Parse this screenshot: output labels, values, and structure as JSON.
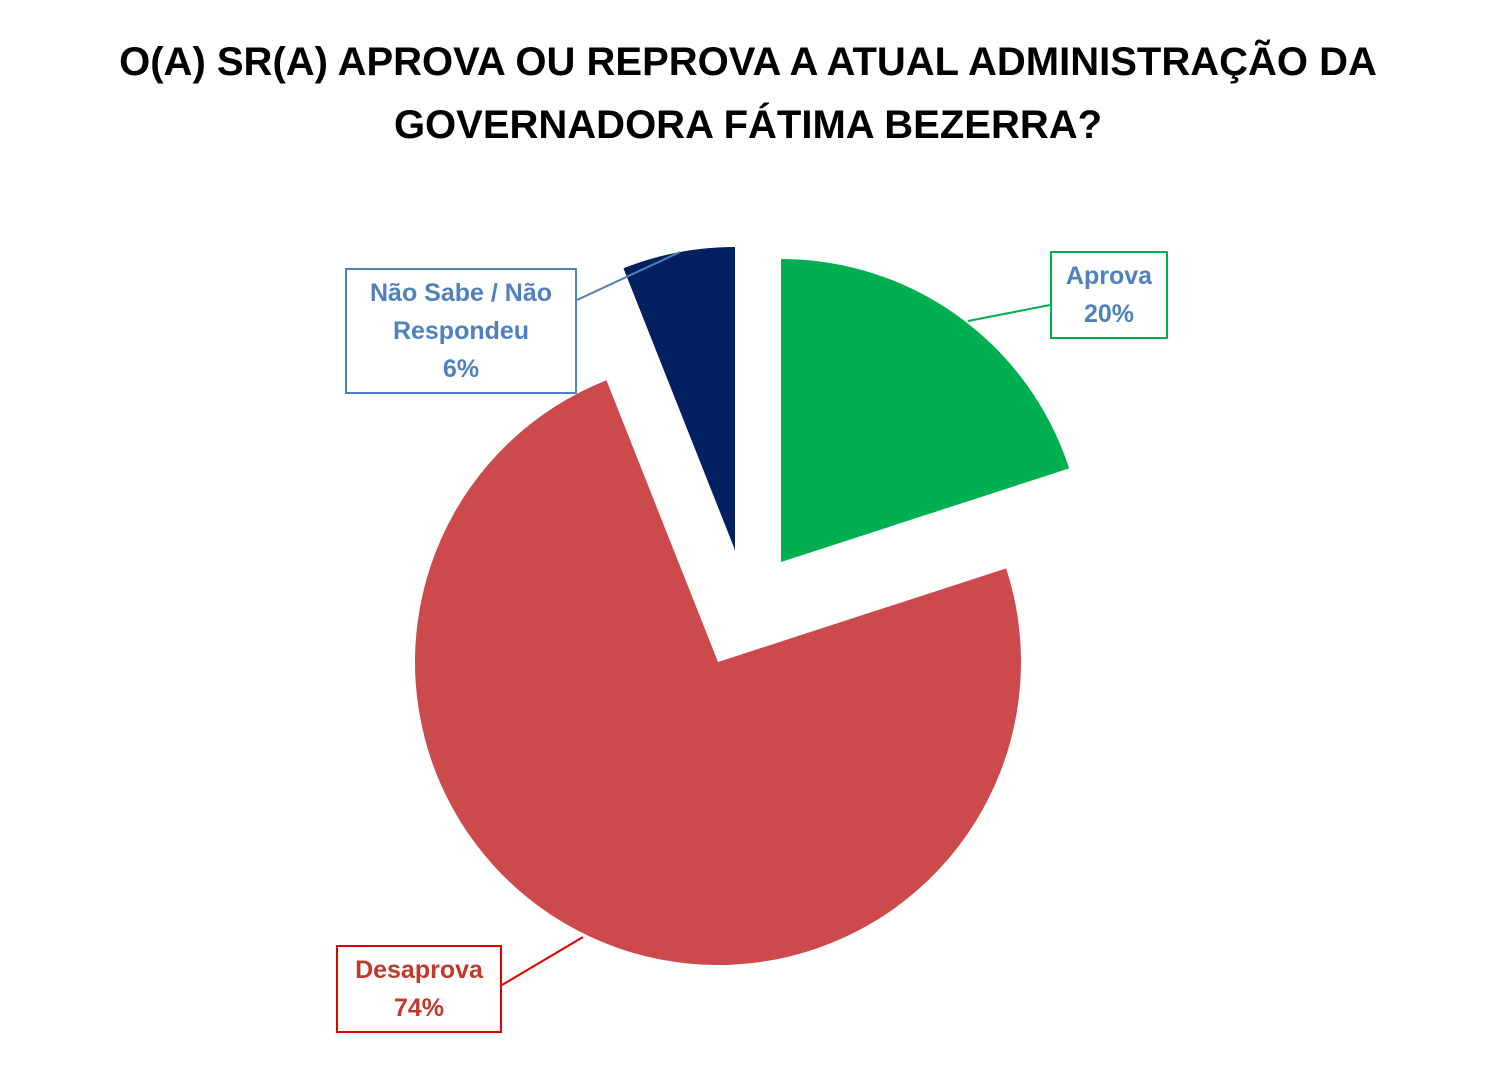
{
  "chart_data": {
    "type": "pie",
    "title": [
      "O(A) SR(A) APROVA OU REPROVA A ATUAL ADMINISTRAÇÃO DA",
      "GOVERNADORA FÁTIMA BEZERRA?"
    ],
    "categories": [
      "Aprova",
      "Desaprova",
      "Não Sabe / Não Respondeu"
    ],
    "values": [
      20,
      74,
      6
    ],
    "value_labels": [
      "20%",
      "74%",
      "6%"
    ],
    "colors": [
      "#00b050",
      "#cd4a4c",
      "#002060"
    ]
  }
}
